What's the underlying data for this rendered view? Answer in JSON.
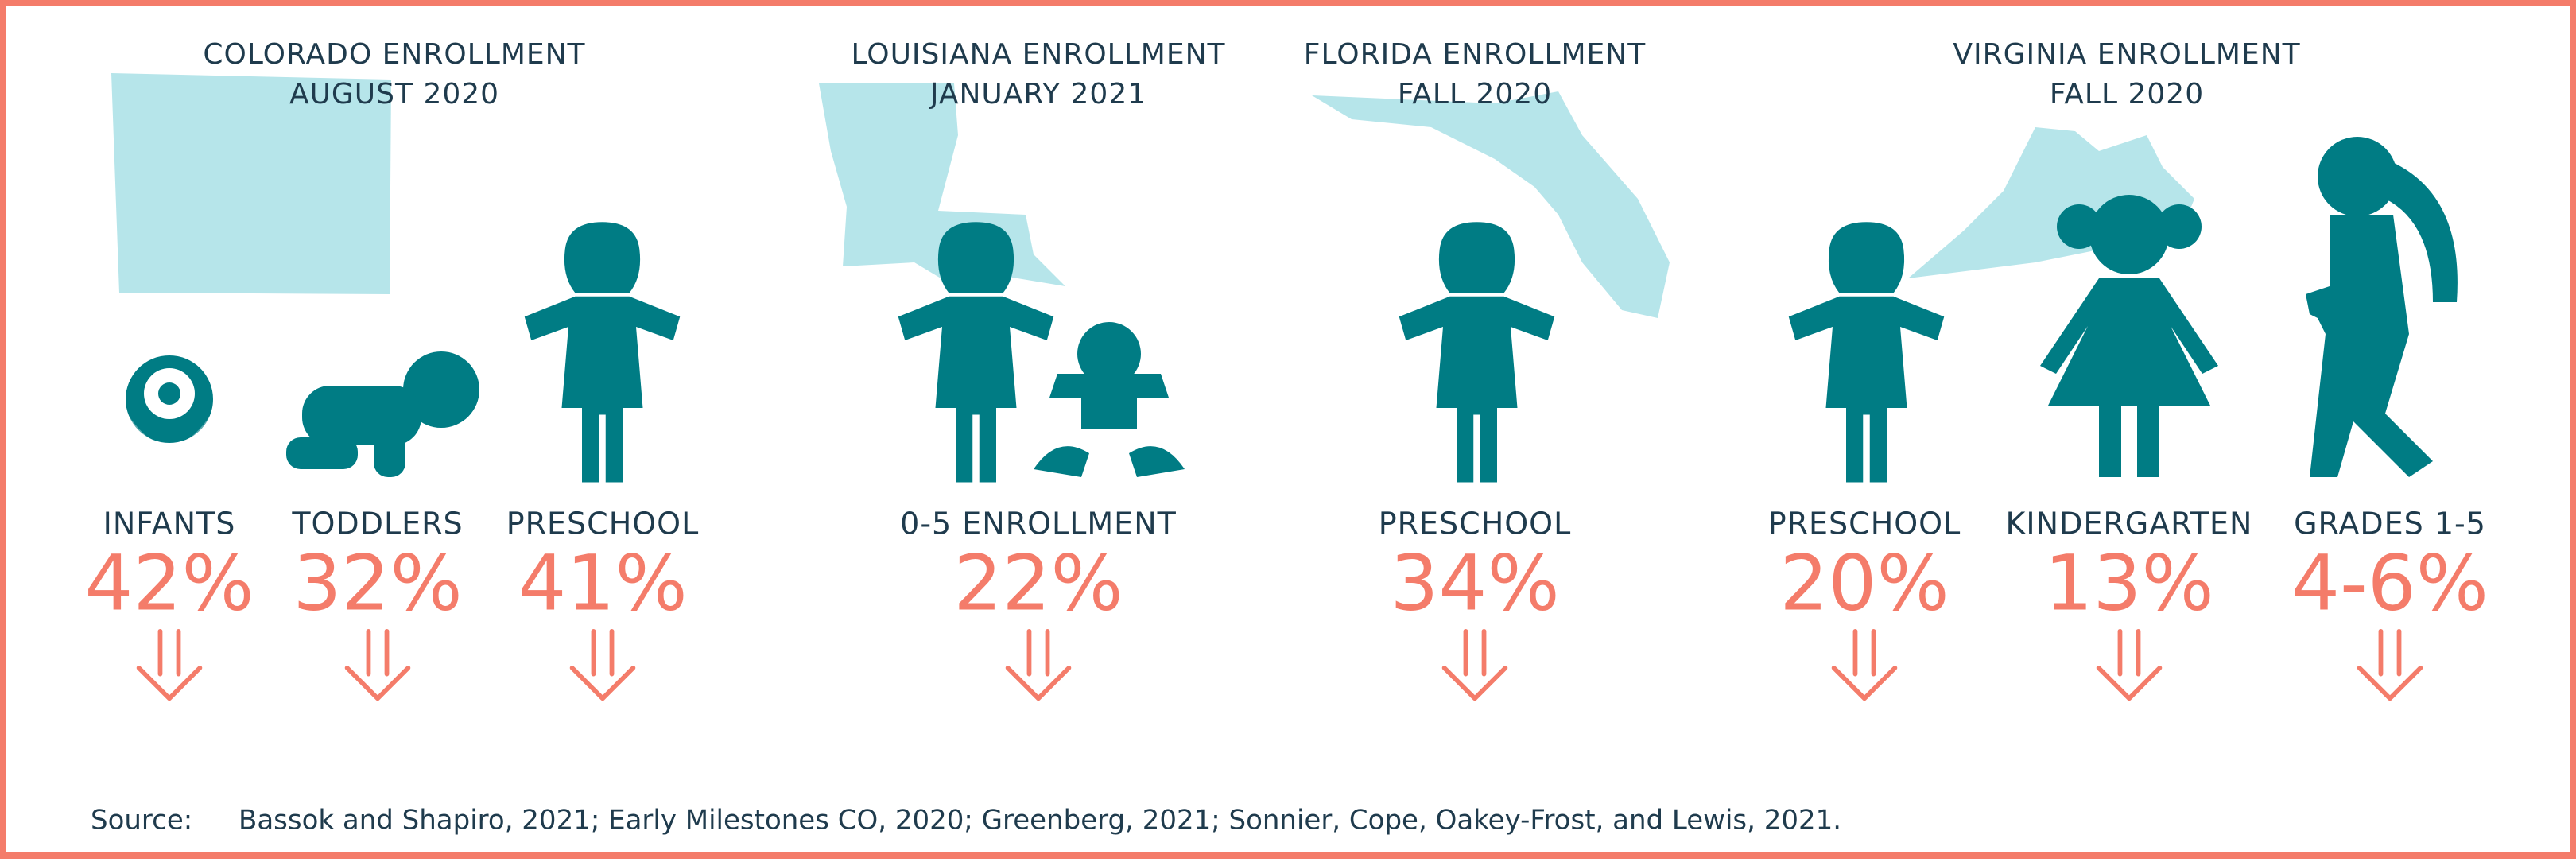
{
  "groups": [
    {
      "title": [
        "COLORADO ENROLLMENT",
        "AUGUST 2020"
      ],
      "items": [
        {
          "label": "INFANTS",
          "value": "42%"
        },
        {
          "label": "TODDLERS",
          "value": "32%"
        },
        {
          "label": "PRESCHOOL",
          "value": "41%"
        }
      ]
    },
    {
      "title": [
        "LOUISIANA ENROLLMENT",
        "JANUARY 2021"
      ],
      "items": [
        {
          "label": "0-5 ENROLLMENT",
          "value": "22%"
        }
      ]
    },
    {
      "title": [
        "FLORIDA ENROLLMENT",
        "FALL 2020"
      ],
      "items": [
        {
          "label": "PRESCHOOL",
          "value": "34%"
        }
      ]
    },
    {
      "title": [
        "VIRGINIA ENROLLMENT",
        "FALL 2020"
      ],
      "items": [
        {
          "label": "PRESCHOOL",
          "value": "20%"
        },
        {
          "label": "KINDERGARTEN",
          "value": "13%"
        },
        {
          "label": "GRADES 1-5",
          "value": "4-6%"
        }
      ]
    }
  ],
  "source": {
    "label": "Source:",
    "text": "Bassok and Shapiro, 2021; Early Milestones CO, 2020; Greenberg, 2021; Sonnier, Cope, Oakey-Frost, and Lewis, 2021."
  }
}
